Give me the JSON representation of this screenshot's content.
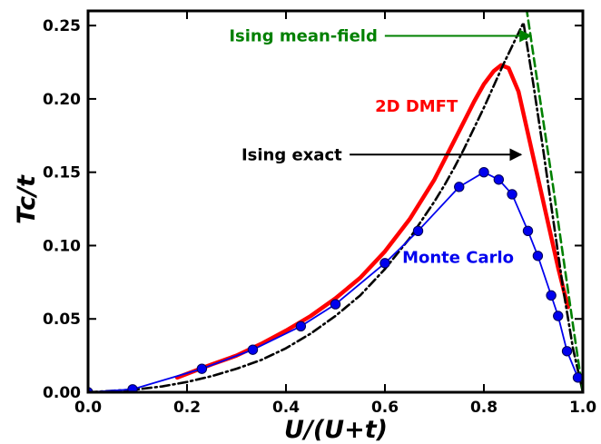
{
  "chart_data": {
    "type": "line",
    "title": "",
    "xlabel": "U/(U+t)",
    "ylabel": "Tc/t",
    "xlim": [
      0.0,
      1.0
    ],
    "ylim": [
      0.0,
      0.26
    ],
    "grid": false,
    "x_ticks": [
      0.0,
      0.2,
      0.4,
      0.6,
      0.8,
      1.0
    ],
    "x_tick_labels": [
      "0.0",
      "0.2",
      "0.4",
      "0.6",
      "0.8",
      "1.0"
    ],
    "y_ticks": [
      0.0,
      0.05,
      0.1,
      0.15,
      0.2,
      0.25
    ],
    "y_tick_labels": [
      "0.00",
      "0.05",
      "0.10",
      "0.15",
      "0.20",
      "0.25"
    ],
    "series": [
      {
        "name": "Monte Carlo",
        "color": "#0000ee",
        "style": "line-with-markers",
        "x": [
          0.0,
          0.09,
          0.23,
          0.333,
          0.43,
          0.5,
          0.6,
          0.667,
          0.75,
          0.8,
          0.83,
          0.857,
          0.889,
          0.909,
          0.936,
          0.95,
          0.968,
          0.99
        ],
        "y": [
          0.0,
          0.002,
          0.016,
          0.029,
          0.045,
          0.06,
          0.088,
          0.11,
          0.14,
          0.15,
          0.145,
          0.135,
          0.11,
          0.093,
          0.066,
          0.052,
          0.028,
          0.01
        ]
      },
      {
        "name": "2D DMFT",
        "color": "#ff0000",
        "style": "thick-line",
        "x": [
          0.18,
          0.25,
          0.3,
          0.35,
          0.4,
          0.45,
          0.5,
          0.55,
          0.6,
          0.65,
          0.7,
          0.75,
          0.78,
          0.8,
          0.82,
          0.835,
          0.85,
          0.87,
          0.89,
          0.91,
          0.93,
          0.95,
          0.97
        ],
        "y": [
          0.01,
          0.019,
          0.025,
          0.033,
          0.042,
          0.052,
          0.064,
          0.078,
          0.096,
          0.118,
          0.145,
          0.178,
          0.198,
          0.21,
          0.219,
          0.223,
          0.221,
          0.205,
          0.175,
          0.145,
          0.115,
          0.085,
          0.058
        ]
      },
      {
        "name": "Ising exact",
        "color": "#000000",
        "style": "dash-dot",
        "x": [
          0.0,
          0.05,
          0.1,
          0.15,
          0.2,
          0.25,
          0.3,
          0.35,
          0.4,
          0.45,
          0.5,
          0.55,
          0.6,
          0.65,
          0.7,
          0.72,
          0.74,
          0.76,
          0.78,
          0.8,
          0.82,
          0.84,
          0.86,
          0.88,
          0.9,
          0.92,
          0.94,
          0.96,
          0.98,
          1.0
        ],
        "y": [
          0.0,
          0.001,
          0.002,
          0.004,
          0.007,
          0.011,
          0.016,
          0.022,
          0.03,
          0.04,
          0.052,
          0.066,
          0.084,
          0.105,
          0.13,
          0.141,
          0.153,
          0.166,
          0.18,
          0.194,
          0.209,
          0.224,
          0.238,
          0.252,
          0.21,
          0.165,
          0.118,
          0.071,
          0.03,
          0.0
        ]
      },
      {
        "name": "Ising mean-field",
        "color": "#008000",
        "style": "dashed",
        "x": [
          0.886,
          0.9,
          0.92,
          0.94,
          0.96,
          0.98,
          1.0
        ],
        "y": [
          0.262,
          0.23,
          0.185,
          0.14,
          0.093,
          0.046,
          0.0
        ]
      }
    ],
    "annotations": [
      {
        "text": "Ising mean-field",
        "color": "#008000",
        "series": "Ising mean-field",
        "arrow": true,
        "tx": 0.285,
        "ty": 0.243,
        "ax": 0.895,
        "ay": 0.243
      },
      {
        "text": "2D DMFT",
        "color": "#ff0000",
        "series": "2D DMFT",
        "arrow": false,
        "tx": 0.58,
        "ty": 0.195
      },
      {
        "text": "Ising exact",
        "color": "#000000",
        "series": "Ising exact",
        "arrow": true,
        "tx": 0.31,
        "ty": 0.162,
        "ax": 0.875,
        "ay": 0.162
      },
      {
        "text": "Monte Carlo",
        "color": "#0000ee",
        "series": "Monte Carlo",
        "arrow": false,
        "tx": 0.635,
        "ty": 0.092
      }
    ]
  }
}
